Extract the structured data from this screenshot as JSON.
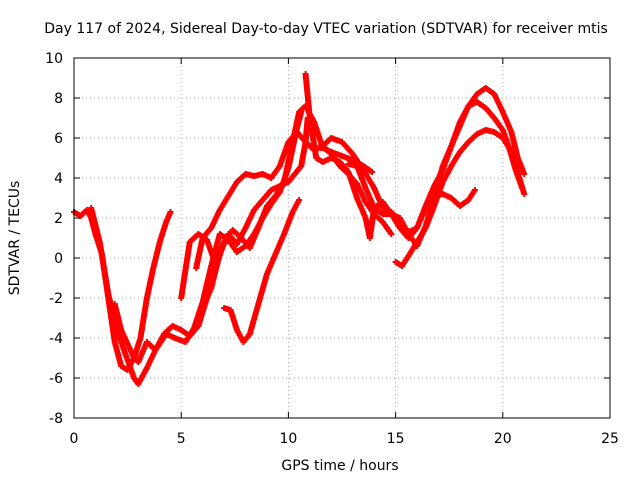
{
  "chart_data": {
    "type": "scatter",
    "title": "Day 117 of 2024, Sidereal Day-to-day VTEC variation (SDTVAR) for receiver mtis",
    "xlabel": "GPS time / hours",
    "ylabel": "SDTVAR / TECUs",
    "xlim": [
      0,
      25
    ],
    "ylim": [
      -8,
      10
    ],
    "xticks": [
      "0",
      "5",
      "10",
      "15",
      "20",
      "25"
    ],
    "yticks": [
      "-8",
      "-6",
      "-4",
      "-2",
      "0",
      "2",
      "4",
      "6",
      "8",
      "10"
    ],
    "grid": true,
    "marker": "+",
    "color": "#ff0000",
    "series": [
      {
        "x": [
          0.0,
          0.3,
          0.6,
          0.8,
          1.0,
          1.3,
          1.6,
          1.9,
          2.2,
          2.5,
          2.8,
          3.1,
          3.4,
          3.7,
          4.0,
          4.3,
          4.5
        ],
        "y": [
          2.3,
          2.1,
          2.4,
          2.0,
          1.2,
          0.2,
          -2.0,
          -4.2,
          -5.4,
          -5.6,
          -5.0,
          -4.0,
          -2.0,
          -0.5,
          0.8,
          1.8,
          2.3
        ]
      },
      {
        "x": [
          0.8,
          1.2,
          1.6,
          2.0,
          2.4,
          2.8,
          3.0,
          3.4,
          3.8,
          4.2,
          4.6,
          5.0,
          5.4,
          5.8,
          6.2,
          6.6,
          7.0
        ],
        "y": [
          2.5,
          0.8,
          -1.8,
          -3.6,
          -4.8,
          -6.0,
          -6.3,
          -5.5,
          -4.6,
          -3.8,
          -3.4,
          -3.6,
          -3.9,
          -3.4,
          -2.0,
          -0.5,
          0.8
        ]
      },
      {
        "x": [
          1.9,
          2.2,
          2.5,
          2.8,
          3.0,
          3.4,
          3.8,
          4.3,
          4.7,
          5.2,
          5.6,
          6.0,
          6.4,
          6.8,
          7.2,
          7.6,
          8.0,
          8.4,
          8.8,
          9.2,
          9.6,
          10.0,
          10.4,
          10.6
        ],
        "y": [
          -2.3,
          -3.6,
          -4.3,
          -5.0,
          -5.2,
          -4.2,
          -4.6,
          -3.8,
          -4.0,
          -4.2,
          -3.5,
          -2.2,
          -0.4,
          1.2,
          0.9,
          0.3,
          0.6,
          1.2,
          2.0,
          2.7,
          3.3,
          4.5,
          6.5,
          7.3
        ]
      },
      {
        "x": [
          5.0,
          5.4,
          5.8,
          6.2,
          6.6,
          7.0,
          7.4,
          7.8,
          8.2,
          8.6,
          9.0,
          9.4,
          9.8,
          10.2,
          10.5,
          10.8,
          11.2,
          11.6,
          12.0,
          12.5,
          13.0,
          13.5,
          13.9
        ],
        "y": [
          -2.0,
          0.8,
          1.2,
          0.9,
          -0.3,
          0.8,
          1.4,
          1.0,
          0.5,
          1.5,
          2.6,
          3.1,
          3.8,
          5.8,
          7.3,
          7.6,
          6.8,
          5.5,
          5.3,
          5.1,
          4.9,
          4.6,
          4.3
        ]
      },
      {
        "x": [
          6.0,
          6.4,
          6.8,
          7.2,
          7.6,
          8.0,
          8.4,
          8.8,
          9.2,
          9.6,
          10.0,
          10.3,
          10.6,
          10.8,
          10.9
        ],
        "y": [
          -2.5,
          -1.5,
          0.2,
          1.2,
          0.7,
          1.5,
          2.4,
          2.9,
          3.4,
          3.6,
          3.8,
          4.2,
          4.6,
          5.8,
          7.0
        ]
      },
      {
        "x": [
          5.7,
          6.0,
          6.4,
          6.8,
          7.2,
          7.6,
          8.0,
          8.4,
          8.8,
          9.2,
          9.6,
          10.0,
          10.4,
          10.8,
          11.2,
          11.6,
          12.0,
          12.4,
          12.8,
          13.2,
          13.6,
          14.0,
          14.4,
          14.8
        ],
        "y": [
          -0.5,
          1.0,
          1.5,
          2.4,
          3.1,
          3.8,
          4.2,
          4.1,
          4.2,
          4.0,
          4.6,
          5.8,
          6.3,
          5.8,
          5.4,
          5.6,
          5.2,
          4.6,
          4.2,
          3.7,
          2.8,
          2.2,
          1.8,
          1.2
        ]
      },
      {
        "x": [
          7.0,
          7.3,
          7.6,
          7.9,
          8.2,
          8.6,
          9.0,
          9.4,
          9.8,
          10.2,
          10.5
        ],
        "y": [
          -2.5,
          -2.6,
          -3.6,
          -4.2,
          -3.8,
          -2.3,
          -0.8,
          0.2,
          1.2,
          2.3,
          2.9
        ]
      },
      {
        "x": [
          10.8,
          11.0,
          11.3,
          11.6,
          12.0,
          12.4,
          12.8,
          13.2,
          13.6,
          13.8,
          14.0,
          14.4,
          14.8,
          15.2,
          15.6,
          16.0,
          16.4,
          16.8,
          17.2,
          17.6,
          18.0,
          18.4,
          18.7
        ],
        "y": [
          9.2,
          7.0,
          5.0,
          4.8,
          5.0,
          4.8,
          4.3,
          3.0,
          2.0,
          1.0,
          2.5,
          2.8,
          2.2,
          1.5,
          1.0,
          1.5,
          2.5,
          3.1,
          3.2,
          3.0,
          2.6,
          2.9,
          3.4
        ]
      },
      {
        "x": [
          11.5,
          12.0,
          12.5,
          13.0,
          13.5,
          14.0,
          14.4,
          14.8,
          15.2,
          15.6,
          16.0,
          16.4,
          16.8,
          17.2,
          17.6,
          18.0,
          18.4,
          18.8,
          19.2,
          19.6,
          20.0,
          20.3,
          20.6,
          20.9
        ],
        "y": [
          5.5,
          6.0,
          5.8,
          5.2,
          4.4,
          3.5,
          2.5,
          2.3,
          1.8,
          1.3,
          1.5,
          2.6,
          3.6,
          4.4,
          5.6,
          6.8,
          7.6,
          7.8,
          7.5,
          7.0,
          6.4,
          5.5,
          4.4,
          3.5
        ]
      },
      {
        "x": [
          12.8,
          13.2,
          13.6,
          14.0,
          14.4,
          14.8,
          15.2,
          15.6,
          16.0,
          16.4,
          16.8,
          17.2,
          17.6,
          18.0,
          18.4,
          18.8,
          19.2,
          19.6,
          20.0,
          20.4,
          20.7,
          21.0
        ],
        "y": [
          4.7,
          4.6,
          3.5,
          2.5,
          2.2,
          2.2,
          2.0,
          1.2,
          0.6,
          1.6,
          3.0,
          4.6,
          5.6,
          6.6,
          7.6,
          8.2,
          8.5,
          8.2,
          7.3,
          6.3,
          5.0,
          4.2
        ]
      },
      {
        "x": [
          15.0,
          15.3,
          15.6,
          16.0,
          16.4,
          16.8,
          17.2,
          17.6,
          18.0,
          18.4,
          18.8,
          19.2,
          19.6,
          20.0,
          20.3,
          20.6,
          21.0
        ],
        "y": [
          -0.2,
          -0.4,
          0.1,
          0.8,
          1.5,
          2.6,
          3.8,
          4.6,
          5.3,
          5.8,
          6.2,
          6.4,
          6.3,
          6.0,
          5.5,
          4.6,
          3.2
        ]
      }
    ]
  }
}
